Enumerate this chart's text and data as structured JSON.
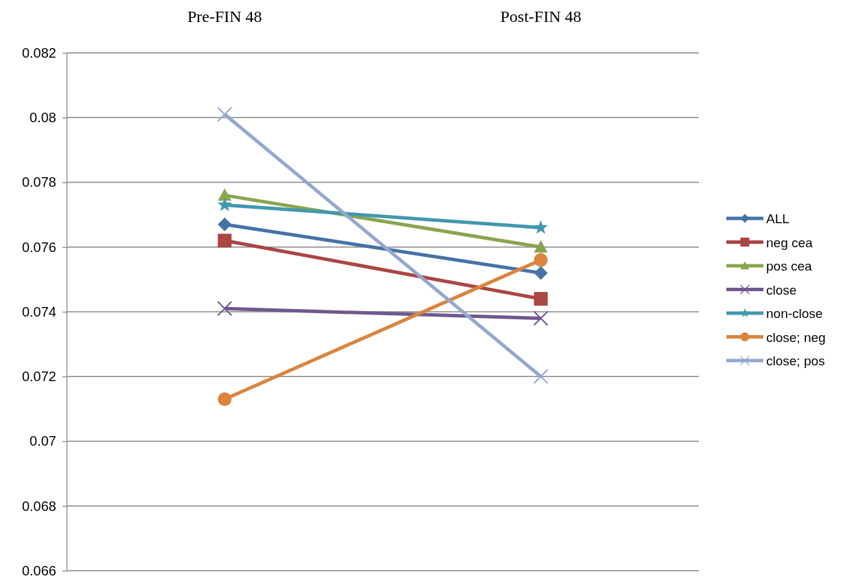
{
  "chart_data": {
    "type": "line",
    "categories": [
      "Pre-FIN 48",
      "Post-FIN 48"
    ],
    "ylim": [
      0.066,
      0.082
    ],
    "yticks": [
      0.066,
      0.068,
      0.07,
      0.072,
      0.074,
      0.076,
      0.078,
      0.08,
      0.082
    ],
    "grid": "y",
    "legend": "right",
    "series": [
      {
        "name": "ALL",
        "color": "#4572a7",
        "marker": "diamond",
        "values": [
          0.0767,
          0.0752
        ]
      },
      {
        "name": "neg cea",
        "color": "#aa4643",
        "marker": "square",
        "values": [
          0.0762,
          0.0744
        ]
      },
      {
        "name": "pos cea",
        "color": "#89a54e",
        "marker": "triangle",
        "values": [
          0.0776,
          0.076
        ]
      },
      {
        "name": "close",
        "color": "#71588f",
        "marker": "cross",
        "values": [
          0.0741,
          0.0738
        ]
      },
      {
        "name": "non-close",
        "color": "#4198af",
        "marker": "star",
        "values": [
          0.0773,
          0.0766
        ]
      },
      {
        "name": "close; neg",
        "color": "#db843d",
        "marker": "circle",
        "values": [
          0.0713,
          0.0756
        ]
      },
      {
        "name": "close; pos",
        "color": "#93a9cf",
        "marker": "cross",
        "values": [
          0.0801,
          0.072
        ]
      }
    ]
  }
}
